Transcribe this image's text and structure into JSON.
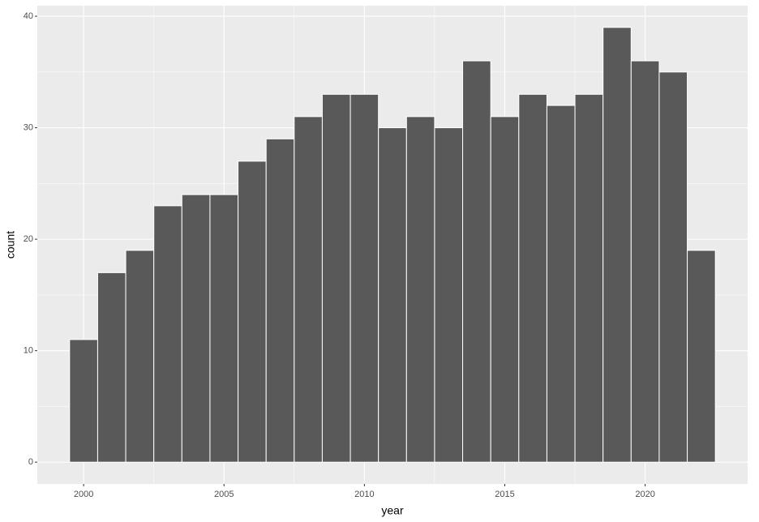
{
  "chart_data": {
    "type": "histogram",
    "bins": [
      1999.5,
      2000.5,
      2001.5,
      2002.5,
      2003.5,
      2004.5,
      2005.5,
      2006.5,
      2007.5,
      2008.5,
      2009.5,
      2010.5,
      2011.5,
      2012.5,
      2013.5,
      2014.5,
      2015.5,
      2016.5,
      2017.5,
      2018.5,
      2019.5,
      2020.5,
      2021.5,
      2022.5
    ],
    "values": [
      11,
      17,
      19,
      23,
      24,
      24,
      27,
      29,
      31,
      33,
      33,
      30,
      31,
      30,
      36,
      31,
      33,
      32,
      33,
      39,
      36,
      35,
      19
    ],
    "color": "#595959",
    "xlabel": "year",
    "ylabel": "count",
    "xlim": [
      1998.35,
      2023.65
    ],
    "xticks": [
      2000,
      2005,
      2010,
      2015,
      2020
    ],
    "ylim": [
      -1.95,
      40.95
    ],
    "yticks": [
      0,
      10,
      20,
      30,
      40
    ],
    "grid": true
  }
}
